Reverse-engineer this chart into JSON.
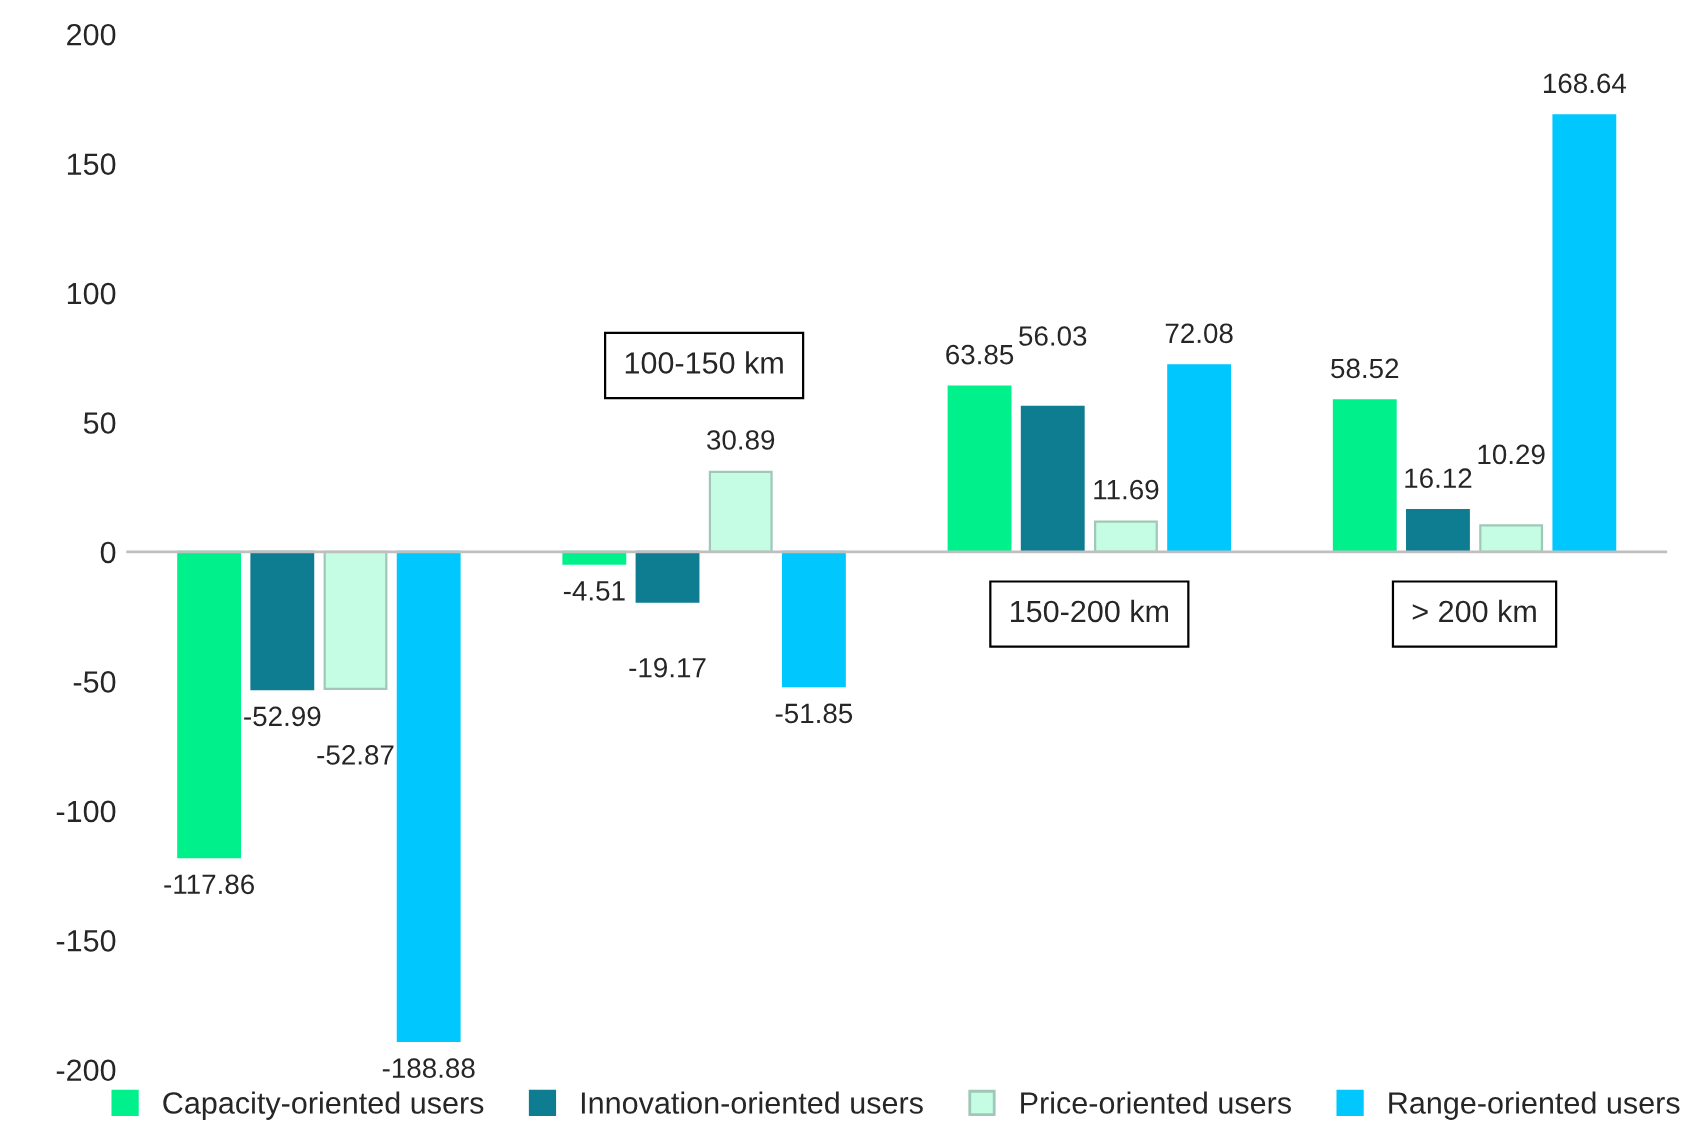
{
  "chart_data": {
    "type": "bar",
    "categories": [
      null,
      "100-150 km",
      "150-200 km",
      "> 200 km"
    ],
    "series": [
      {
        "name": "Capacity-oriented users",
        "color": "#00f08c",
        "values": [
          -117.86,
          -4.51,
          63.85,
          58.52
        ]
      },
      {
        "name": "Innovation-oriented users",
        "color": "#0e7c91",
        "values": [
          -52.99,
          -19.17,
          56.03,
          16.12
        ]
      },
      {
        "name": "Price-oriented users",
        "color": "#c4fde4",
        "values": [
          -52.87,
          30.89,
          11.69,
          10.29
        ]
      },
      {
        "name": "Range-oriented users",
        "color": "#00c8ff",
        "values": [
          -188.88,
          -51.85,
          72.08,
          168.64
        ]
      }
    ],
    "ylim": [
      -200,
      200
    ],
    "yticks": [
      -200,
      -150,
      -100,
      -50,
      0,
      50,
      100,
      150,
      200
    ],
    "data_labels": true,
    "grid": false,
    "legend": "bottom"
  }
}
